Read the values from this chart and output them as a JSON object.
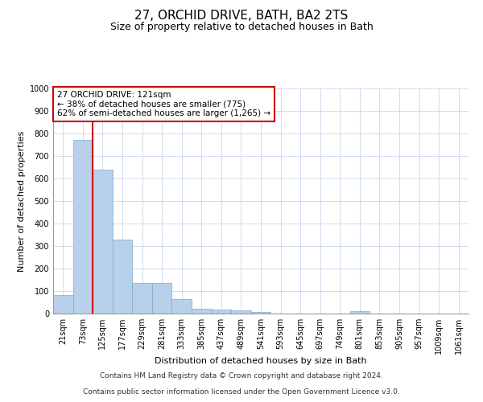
{
  "title": "27, ORCHID DRIVE, BATH, BA2 2TS",
  "subtitle": "Size of property relative to detached houses in Bath",
  "xlabel": "Distribution of detached houses by size in Bath",
  "ylabel": "Number of detached properties",
  "bar_labels": [
    "21sqm",
    "73sqm",
    "125sqm",
    "177sqm",
    "229sqm",
    "281sqm",
    "333sqm",
    "385sqm",
    "437sqm",
    "489sqm",
    "541sqm",
    "593sqm",
    "645sqm",
    "697sqm",
    "749sqm",
    "801sqm",
    "853sqm",
    "905sqm",
    "957sqm",
    "1009sqm",
    "1061sqm"
  ],
  "bar_values": [
    83,
    770,
    640,
    330,
    135,
    135,
    63,
    22,
    17,
    13,
    8,
    0,
    0,
    0,
    0,
    10,
    0,
    0,
    0,
    0,
    0
  ],
  "bar_color": "#b8d0ea",
  "bar_edge_color": "#7aaacf",
  "ylim": [
    0,
    1000
  ],
  "yticks": [
    0,
    100,
    200,
    300,
    400,
    500,
    600,
    700,
    800,
    900,
    1000
  ],
  "property_line_color": "#cc0000",
  "annotation_text": "27 ORCHID DRIVE: 121sqm\n← 38% of detached houses are smaller (775)\n62% of semi-detached houses are larger (1,265) →",
  "footer_line1": "Contains HM Land Registry data © Crown copyright and database right 2024.",
  "footer_line2": "Contains public sector information licensed under the Open Government Licence v3.0.",
  "background_color": "#ffffff",
  "grid_color": "#c8d8ec",
  "title_fontsize": 11,
  "subtitle_fontsize": 9,
  "axis_label_fontsize": 8,
  "tick_fontsize": 7,
  "annotation_fontsize": 7.5,
  "footer_fontsize": 6.5
}
